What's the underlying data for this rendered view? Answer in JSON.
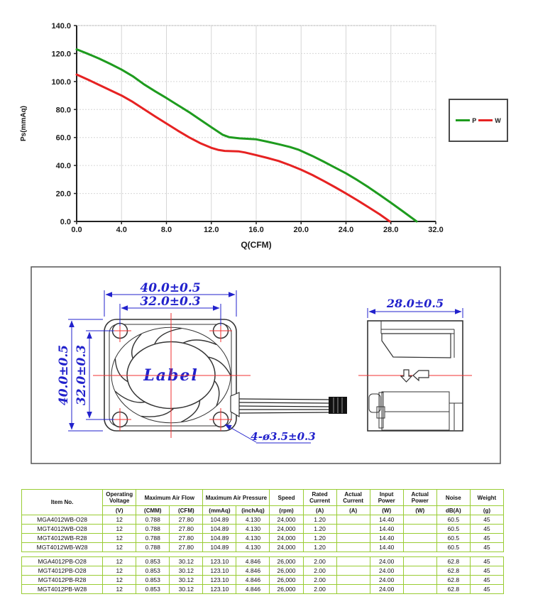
{
  "chart": {
    "type": "line",
    "xlabel": "Q(CFM)",
    "ylabel": "Ps(mmAq)",
    "xlim": [
      0,
      32
    ],
    "ylim": [
      0,
      140
    ],
    "grid": true,
    "legend_position": "right",
    "xticks": [
      {
        "v": 0,
        "label": "0.0"
      },
      {
        "v": 4,
        "label": "4.0"
      },
      {
        "v": 8,
        "label": "8.0"
      },
      {
        "v": 12,
        "label": "12.0"
      },
      {
        "v": 16,
        "label": "16.0"
      },
      {
        "v": 20,
        "label": "20.0"
      },
      {
        "v": 24,
        "label": "24.0"
      },
      {
        "v": 28,
        "label": "28.0"
      },
      {
        "v": 32,
        "label": "32.0"
      }
    ],
    "yticks": [
      {
        "v": 0,
        "label": "0.0"
      },
      {
        "v": 20,
        "label": "20.0"
      },
      {
        "v": 40,
        "label": "40.0"
      },
      {
        "v": 60,
        "label": "60.0"
      },
      {
        "v": 80,
        "label": "80.0"
      },
      {
        "v": 100,
        "label": "100.0"
      },
      {
        "v": 120,
        "label": "120.0"
      },
      {
        "v": 140,
        "label": "140.0"
      }
    ],
    "series": [
      {
        "name": "P",
        "color": "#1e9b1e",
        "points": [
          [
            0,
            123
          ],
          [
            1,
            119.8
          ],
          [
            2,
            116.4
          ],
          [
            3,
            112.6
          ],
          [
            4,
            108.5
          ],
          [
            5,
            103.8
          ],
          [
            6,
            98
          ],
          [
            7,
            93
          ],
          [
            8,
            88.2
          ],
          [
            9,
            83.2
          ],
          [
            10,
            78.2
          ],
          [
            11,
            72.8
          ],
          [
            12,
            67.3
          ],
          [
            13,
            62
          ],
          [
            13.6,
            60.2
          ],
          [
            14.5,
            59.4
          ],
          [
            16,
            58.7
          ],
          [
            17,
            57
          ],
          [
            18,
            55.2
          ],
          [
            19,
            53.2
          ],
          [
            19.8,
            51.2
          ],
          [
            21,
            46.8
          ],
          [
            22,
            42.8
          ],
          [
            23,
            38.6
          ],
          [
            24,
            34.4
          ],
          [
            25,
            29.6
          ],
          [
            26,
            24.5
          ],
          [
            27,
            19
          ],
          [
            28,
            13.4
          ],
          [
            29,
            7.6
          ],
          [
            30.3,
            0
          ]
        ]
      },
      {
        "name": "W",
        "color": "#e62222",
        "points": [
          [
            0,
            105
          ],
          [
            1,
            101.4
          ],
          [
            2,
            97.6
          ],
          [
            3,
            93.8
          ],
          [
            4,
            90
          ],
          [
            5,
            85.4
          ],
          [
            6,
            80.2
          ],
          [
            7,
            75
          ],
          [
            8,
            70
          ],
          [
            9,
            65
          ],
          [
            10,
            60.2
          ],
          [
            11,
            56
          ],
          [
            12,
            52.6
          ],
          [
            12.6,
            51.2
          ],
          [
            13.2,
            50.4
          ],
          [
            14.4,
            50.1
          ],
          [
            15,
            49.3
          ],
          [
            16,
            47.4
          ],
          [
            17,
            45.4
          ],
          [
            18,
            43.2
          ],
          [
            19,
            40.3
          ],
          [
            20,
            37
          ],
          [
            21,
            33.2
          ],
          [
            22,
            29
          ],
          [
            23,
            24.6
          ],
          [
            24,
            20
          ],
          [
            25,
            15.2
          ],
          [
            26,
            10.2
          ],
          [
            27,
            5.1
          ],
          [
            27.9,
            0
          ]
        ]
      }
    ]
  },
  "drawing": {
    "dim_width_outer": "40.0±0.5",
    "dim_width_holes": "32.0±0.3",
    "dim_height_outer": "40.0±0.5",
    "dim_height_holes": "32.0±0.3",
    "dim_depth": "28.0±0.5",
    "hole_callout": "4-ø3.5±0.3",
    "hub_label": "Label",
    "colors": {
      "dimension": "#2222cc",
      "centerline": "#f03030",
      "line": "#333333"
    }
  },
  "table": {
    "border_color": "#99cc33",
    "header": {
      "item_no": "Item No.",
      "operating_voltage": "Operating Voltage",
      "max_air_flow": "Maximum Air Flow",
      "max_air_pressure": "Maximum Air Pressure",
      "speed": "Speed",
      "rated_current": "Rated Current",
      "actual_current": "Actual Current",
      "input_power": "Input Power",
      "actual_power": "Actual Power",
      "noise": "Noise",
      "weight": "Weight",
      "units": {
        "voltage": "(V)",
        "cmm": "(CMM)",
        "cfm": "(CFM)",
        "mmaq": "(mmAq)",
        "inchaq": "(inchAq)",
        "rpm": "(rpm)",
        "rated_a": "(A)",
        "actual_a": "(A)",
        "input_w": "(W)",
        "actual_w": "(W)",
        "db": "dB(A)",
        "g": "(g)"
      }
    },
    "group1": [
      [
        "MGA4012WB-O28",
        "12",
        "0.788",
        "27.80",
        "104.89",
        "4.130",
        "24,000",
        "1.20",
        "",
        "14.40",
        "",
        "60.5",
        "45"
      ],
      [
        "MGT4012WB-O28",
        "12",
        "0.788",
        "27.80",
        "104.89",
        "4.130",
        "24,000",
        "1.20",
        "",
        "14.40",
        "",
        "60.5",
        "45"
      ],
      [
        "MGT4012WB-R28",
        "12",
        "0.788",
        "27.80",
        "104.89",
        "4.130",
        "24,000",
        "1.20",
        "",
        "14.40",
        "",
        "60.5",
        "45"
      ],
      [
        "MGT4012WB-W28",
        "12",
        "0.788",
        "27.80",
        "104.89",
        "4.130",
        "24,000",
        "1.20",
        "",
        "14.40",
        "",
        "60.5",
        "45"
      ]
    ],
    "group2": [
      [
        "MGA4012PB-O28",
        "12",
        "0.853",
        "30.12",
        "123.10",
        "4.846",
        "26,000",
        "2.00",
        "",
        "24.00",
        "",
        "62.8",
        "45"
      ],
      [
        "MGT4012PB-O28",
        "12",
        "0.853",
        "30.12",
        "123.10",
        "4.846",
        "26,000",
        "2.00",
        "",
        "24.00",
        "",
        "62.8",
        "45"
      ],
      [
        "MGT4012PB-R28",
        "12",
        "0.853",
        "30.12",
        "123.10",
        "4.846",
        "26,000",
        "2.00",
        "",
        "24.00",
        "",
        "62.8",
        "45"
      ],
      [
        "MGT4012PB-W28",
        "12",
        "0.853",
        "30.12",
        "123.10",
        "4.846",
        "26,000",
        "2.00",
        "",
        "24.00",
        "",
        "62.8",
        "45"
      ]
    ]
  }
}
